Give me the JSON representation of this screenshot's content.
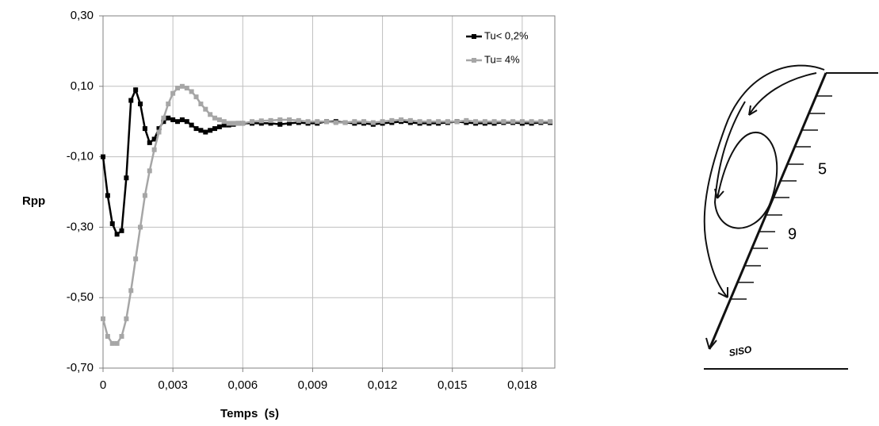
{
  "chart_data": {
    "type": "line",
    "x_label": "Temps  (s)",
    "y_label": "Rpp",
    "x": [
      0,
      0.0002,
      0.0004,
      0.0006,
      0.0008,
      0.001,
      0.0012,
      0.0014,
      0.0016,
      0.0018,
      0.002,
      0.0022,
      0.0024,
      0.0026,
      0.0028,
      0.003,
      0.0032,
      0.0034,
      0.0036,
      0.0038,
      0.004,
      0.0042,
      0.0044,
      0.0046,
      0.0048,
      0.005,
      0.0052,
      0.0054,
      0.0056,
      0.0058,
      0.006,
      0.0064,
      0.0068,
      0.0072,
      0.0076,
      0.008,
      0.0084,
      0.0088,
      0.0092,
      0.0096,
      0.01,
      0.0104,
      0.0108,
      0.0112,
      0.0116,
      0.012,
      0.0124,
      0.0128,
      0.0132,
      0.0136,
      0.014,
      0.0144,
      0.0148,
      0.0152,
      0.0156,
      0.016,
      0.0164,
      0.0168,
      0.0172,
      0.0176,
      0.018,
      0.0184,
      0.0188,
      0.0192
    ],
    "series": [
      {
        "name": "Tu< 0,2%",
        "color": "#000000",
        "values": [
          -0.1,
          -0.21,
          -0.29,
          -0.32,
          -0.31,
          -0.16,
          0.06,
          0.09,
          0.05,
          -0.02,
          -0.06,
          -0.05,
          -0.02,
          0.0,
          0.01,
          0.005,
          0.0,
          0.005,
          0.0,
          -0.01,
          -0.02,
          -0.025,
          -0.03,
          -0.025,
          -0.02,
          -0.015,
          -0.01,
          -0.01,
          -0.008,
          -0.005,
          -0.005,
          -0.005,
          -0.005,
          -0.005,
          -0.008,
          -0.005,
          -0.003,
          -0.005,
          -0.005,
          0.0,
          0.0,
          -0.003,
          -0.005,
          -0.005,
          -0.008,
          -0.005,
          -0.003,
          0.0,
          -0.003,
          -0.005,
          -0.005,
          -0.005,
          -0.003,
          0.0,
          -0.003,
          -0.005,
          -0.005,
          -0.005,
          -0.003,
          -0.003,
          -0.005,
          -0.005,
          -0.003,
          -0.003
        ]
      },
      {
        "name": "Tu= 4%",
        "color": "#a6a6a6",
        "values": [
          -0.56,
          -0.61,
          -0.63,
          -0.63,
          -0.61,
          -0.56,
          -0.48,
          -0.39,
          -0.3,
          -0.21,
          -0.14,
          -0.08,
          -0.03,
          0.01,
          0.05,
          0.08,
          0.095,
          0.1,
          0.095,
          0.085,
          0.07,
          0.05,
          0.035,
          0.02,
          0.01,
          0.005,
          0.0,
          -0.005,
          -0.005,
          -0.005,
          -0.005,
          0.0,
          0.002,
          0.003,
          0.005,
          0.005,
          0.003,
          0.0,
          0.0,
          0.0,
          -0.003,
          -0.003,
          0.0,
          0.0,
          -0.003,
          0.0,
          0.003,
          0.005,
          0.003,
          0.0,
          0.0,
          0.0,
          0.0,
          0.0,
          0.003,
          0.0,
          0.0,
          0.0,
          0.0,
          0.0,
          0.0,
          0.0,
          0.0,
          0.0
        ]
      }
    ],
    "xlim": [
      0,
      0.0194
    ],
    "xticks": [
      0,
      {
        "value": 0.003,
        "label": "0,003"
      },
      {
        "value": 0.006,
        "label": "0,006"
      },
      {
        "value": 0.009,
        "label": "0,009"
      },
      {
        "value": 0.012,
        "label": "0,012"
      },
      {
        "value": 0.015,
        "label": "0,015"
      },
      {
        "value": 0.018,
        "label": "0,018"
      }
    ],
    "ylim": [
      -0.7,
      0.3
    ],
    "yticks": [
      {
        "value": -0.7,
        "label": "-0,70"
      },
      {
        "value": -0.5,
        "label": "-0,50"
      },
      {
        "value": -0.3,
        "label": "-0,30"
      },
      {
        "value": -0.1,
        "label": "-0,10"
      },
      {
        "value": 0.1,
        "label": "0,10"
      },
      {
        "value": 0.3,
        "label": "0,30"
      }
    ],
    "grid": true,
    "legend": "upper right",
    "markers": true
  },
  "diagram": {
    "labels": [
      "5",
      "9",
      "SISO"
    ]
  }
}
